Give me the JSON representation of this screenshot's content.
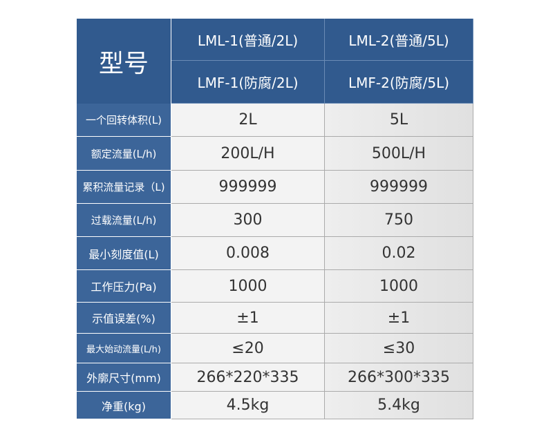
{
  "header": {
    "title": "型号",
    "models": [
      [
        "LML-1(普通/2L)",
        "LMF-1(防腐/2L)"
      ],
      [
        "LML-2(普通/5L)",
        "LMF-2(防腐/5L)"
      ]
    ]
  },
  "table": {
    "rows": [
      [
        "一个回转体积(L)",
        "2L",
        "5L"
      ],
      [
        "额定流量(L/h)",
        "200L/H",
        "500L/H"
      ],
      [
        "累积流量记录（L)",
        "999999",
        "999999"
      ],
      [
        "过载流量(L/h)",
        "300",
        "750"
      ],
      [
        "最小刻度值(L)",
        "0.008",
        "0.02"
      ],
      [
        "工作压力(Pa)",
        "1000",
        "1000"
      ],
      [
        "示值误差(%)",
        "±1",
        "±1"
      ],
      [
        "最大始动流量(L/h)",
        "≤20",
        "≤30"
      ],
      [
        "外廓尺寸(mm)",
        "266*220*335",
        "266*300*335"
      ],
      [
        "净重(kg)",
        "4.5kg",
        "5.4kg"
      ]
    ]
  }
}
